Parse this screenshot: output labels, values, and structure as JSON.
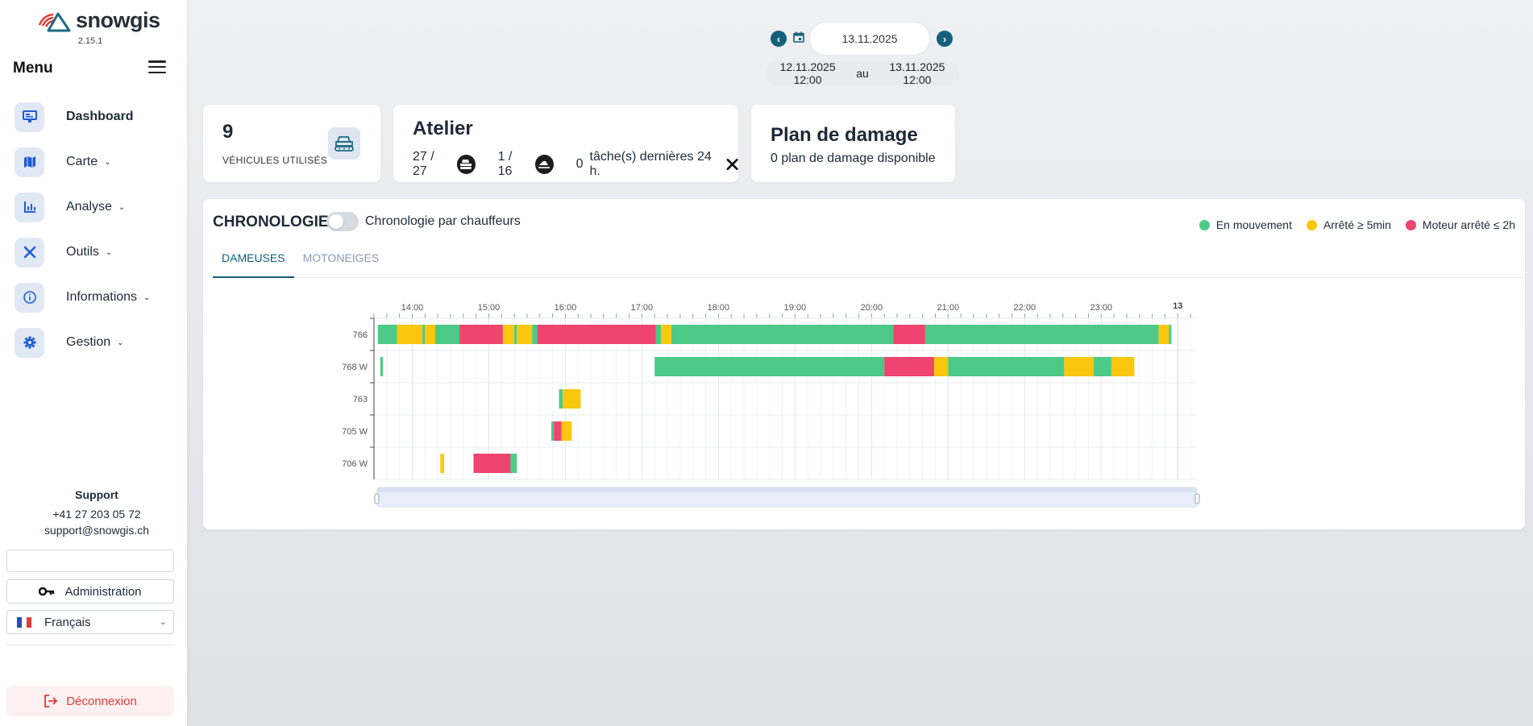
{
  "app": {
    "brand": "snowgis",
    "version": "2.15.1"
  },
  "sidebar": {
    "menu_title": "Menu",
    "items": [
      {
        "label": "Dashboard",
        "icon": "dashboard-icon",
        "active": true
      },
      {
        "label": "Carte",
        "icon": "map-icon"
      },
      {
        "label": "Analyse",
        "icon": "chart-icon"
      },
      {
        "label": "Outils",
        "icon": "tools-icon"
      },
      {
        "label": "Informations",
        "icon": "info-icon"
      },
      {
        "label": "Gestion",
        "icon": "gear-icon"
      }
    ],
    "support": {
      "title": "Support",
      "phone": "+41 27 203 05 72",
      "email": "support@snowgis.ch"
    },
    "admin_label": "Administration",
    "language": "Français",
    "logout_label": "Déconnexion"
  },
  "date_nav": {
    "date": "13.11.2025",
    "range_start": "12.11.2025 12:00",
    "range_sep": "au",
    "range_end": "13.11.2025 12:00"
  },
  "kpi": {
    "value": "9",
    "label": "VÉHICULES UTILISÉS"
  },
  "atelier": {
    "title": "Atelier",
    "groomers": "27 / 27",
    "snowmobiles": "1 / 16",
    "tasks_count": "0",
    "tasks_label": "tâche(s) dernières 24 h."
  },
  "plan": {
    "title": "Plan de damage",
    "subtitle": "0 plan de damage disponible"
  },
  "chronology": {
    "title": "CHRONOLOGIE",
    "toggle_label": "Chronologie par chauffeurs",
    "tabs": [
      "DAMEUSES",
      "MOTONEIGES"
    ],
    "legend": [
      {
        "label": "En mouvement",
        "color": "#4dca88"
      },
      {
        "label": "Arrêté ≥ 5min",
        "color": "#fbc70f"
      },
      {
        "label": "Moteur arrêté ≤ 2h",
        "color": "#ef4370"
      }
    ]
  },
  "chart_data": {
    "type": "timeline",
    "x_axis": {
      "start": "13:30",
      "end": "24:15",
      "ticks": [
        "14:00",
        "15:00",
        "16:00",
        "17:00",
        "18:00",
        "19:00",
        "20:00",
        "21:00",
        "22:00",
        "23:00"
      ],
      "day_marker": "13"
    },
    "categories": [
      "766",
      "768 W",
      "763",
      "705 W",
      "706 W"
    ],
    "series": [
      {
        "vehicle": "766",
        "segments": [
          {
            "start": "13:33",
            "end": "13:48",
            "status": "moving"
          },
          {
            "start": "13:48",
            "end": "14:08",
            "status": "stopped"
          },
          {
            "start": "14:08",
            "end": "14:10",
            "status": "moving"
          },
          {
            "start": "14:10",
            "end": "14:18",
            "status": "stopped"
          },
          {
            "start": "14:18",
            "end": "14:37",
            "status": "moving"
          },
          {
            "start": "14:37",
            "end": "15:11",
            "status": "engine_off"
          },
          {
            "start": "15:11",
            "end": "15:20",
            "status": "stopped"
          },
          {
            "start": "15:20",
            "end": "15:22",
            "status": "moving"
          },
          {
            "start": "15:22",
            "end": "15:34",
            "status": "stopped"
          },
          {
            "start": "15:34",
            "end": "15:38",
            "status": "moving"
          },
          {
            "start": "15:38",
            "end": "17:11",
            "status": "engine_off"
          },
          {
            "start": "17:11",
            "end": "17:15",
            "status": "moving"
          },
          {
            "start": "17:15",
            "end": "17:23",
            "status": "stopped"
          },
          {
            "start": "17:23",
            "end": "20:17",
            "status": "moving"
          },
          {
            "start": "20:17",
            "end": "20:42",
            "status": "engine_off"
          },
          {
            "start": "20:42",
            "end": "23:45",
            "status": "moving"
          },
          {
            "start": "23:45",
            "end": "23:53",
            "status": "stopped"
          },
          {
            "start": "23:53",
            "end": "23:55",
            "status": "moving"
          }
        ]
      },
      {
        "vehicle": "768 W",
        "segments": [
          {
            "start": "13:35",
            "end": "13:37",
            "status": "moving"
          },
          {
            "start": "17:10",
            "end": "20:10",
            "status": "moving"
          },
          {
            "start": "20:10",
            "end": "20:49",
            "status": "engine_off"
          },
          {
            "start": "20:49",
            "end": "21:00",
            "status": "stopped"
          },
          {
            "start": "21:00",
            "end": "22:31",
            "status": "moving"
          },
          {
            "start": "22:31",
            "end": "22:54",
            "status": "stopped"
          },
          {
            "start": "22:54",
            "end": "23:08",
            "status": "moving"
          },
          {
            "start": "23:08",
            "end": "23:26",
            "status": "stopped"
          }
        ]
      },
      {
        "vehicle": "763",
        "segments": [
          {
            "start": "15:55",
            "end": "15:58",
            "status": "moving"
          },
          {
            "start": "15:58",
            "end": "16:12",
            "status": "stopped"
          }
        ]
      },
      {
        "vehicle": "705 W",
        "segments": [
          {
            "start": "15:49",
            "end": "15:51",
            "status": "moving"
          },
          {
            "start": "15:51",
            "end": "15:57",
            "status": "engine_off"
          },
          {
            "start": "15:57",
            "end": "16:05",
            "status": "stopped"
          }
        ]
      },
      {
        "vehicle": "706 W",
        "segments": [
          {
            "start": "14:22",
            "end": "14:25",
            "status": "stopped"
          },
          {
            "start": "14:48",
            "end": "15:17",
            "status": "engine_off"
          },
          {
            "start": "15:17",
            "end": "15:22",
            "status": "moving"
          }
        ]
      }
    ]
  }
}
